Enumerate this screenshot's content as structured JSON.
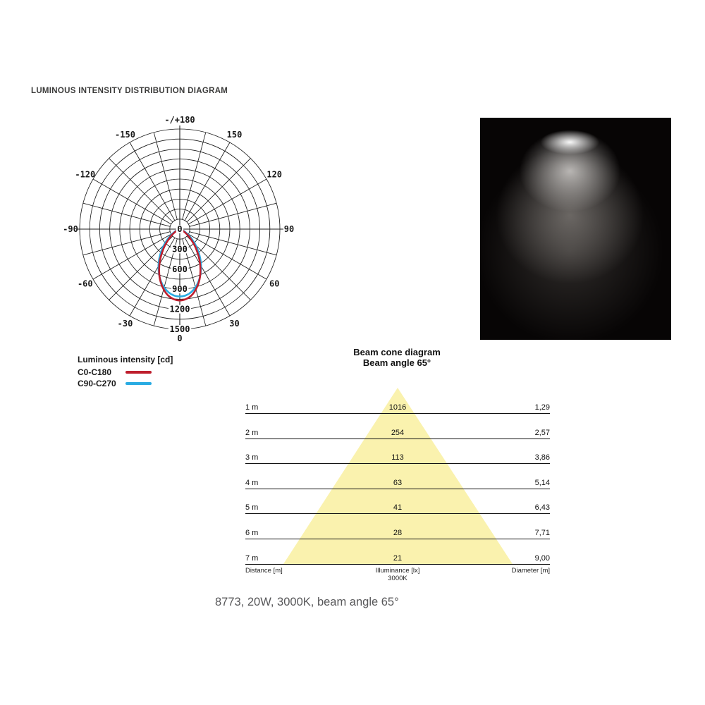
{
  "page": {
    "title": "LUMINOUS INTENSITY DISTRIBUTION DIAGRAM",
    "caption": "8773, 20W, 3000K, beam angle 65°"
  },
  "colors": {
    "red": "#be1e2d",
    "blue": "#29abe2",
    "cone_yellow": "#faf2ae",
    "grid": "#1a1a1a",
    "caption_gray": "#58585a"
  },
  "polar_chart": {
    "legend": {
      "title": "Luminous intensity [cd]",
      "items": [
        {
          "label": "C0-C180",
          "color": "#be1e2d"
        },
        {
          "label": "C90-C270",
          "color": "#29abe2"
        }
      ]
    },
    "angle_labels": [
      {
        "angle": 180,
        "label": "-/+180"
      },
      {
        "angle": -150,
        "label": "-150"
      },
      {
        "angle": 150,
        "label": "150"
      },
      {
        "angle": -120,
        "label": "-120"
      },
      {
        "angle": 120,
        "label": "120"
      },
      {
        "angle": -90,
        "label": "-90"
      },
      {
        "angle": 90,
        "label": "90"
      },
      {
        "angle": -60,
        "label": "-60"
      },
      {
        "angle": 60,
        "label": "60"
      },
      {
        "angle": -30,
        "label": "-30"
      },
      {
        "angle": 30,
        "label": "30"
      },
      {
        "angle": 0,
        "label": "0"
      }
    ],
    "radial_labels": [
      {
        "value": 0,
        "label": "0"
      },
      {
        "value": 300,
        "label": "300"
      },
      {
        "value": 600,
        "label": "600"
      },
      {
        "value": 900,
        "label": "900"
      },
      {
        "value": 1200,
        "label": "1200"
      },
      {
        "value": 1500,
        "label": "1500"
      }
    ],
    "max_value": 1500,
    "ring_step": 150,
    "spoke_step_deg": 15
  },
  "beam_cone": {
    "title_line1": "Beam cone diagram",
    "title_line2": "Beam angle 65°",
    "rows": [
      {
        "distance": "1 m",
        "illuminance": "1016",
        "diameter": "1,29"
      },
      {
        "distance": "2 m",
        "illuminance": "254",
        "diameter": "2,57"
      },
      {
        "distance": "3 m",
        "illuminance": "113",
        "diameter": "3,86"
      },
      {
        "distance": "4 m",
        "illuminance": "63",
        "diameter": "5,14"
      },
      {
        "distance": "5 m",
        "illuminance": "41",
        "diameter": "6,43"
      },
      {
        "distance": "6 m",
        "illuminance": "28",
        "diameter": "7,71"
      },
      {
        "distance": "7 m",
        "illuminance": "21",
        "diameter": "9,00"
      }
    ],
    "footer": {
      "left": "Distance [m]",
      "center_line1": "Illuminance [lx]",
      "center_line2": "3000K",
      "right": "Diameter [m]"
    }
  },
  "chart_data": [
    {
      "type": "line",
      "variant": "polar",
      "title": "Luminous intensity [cd]",
      "angle_unit": "degrees_from_nadir",
      "radial_axis_range": [
        0,
        1500
      ],
      "radial_ticks": [
        300,
        600,
        900,
        1200,
        1500
      ],
      "angle_ticks": [
        -180,
        -150,
        -120,
        -90,
        -60,
        -30,
        0,
        30,
        60,
        90,
        120,
        150,
        180
      ],
      "grid": true,
      "legend_position": "below-left",
      "series": [
        {
          "name": "C0-C180",
          "color": "#be1e2d",
          "points": [
            [
              -90,
              0
            ],
            [
              -80,
              1
            ],
            [
              -70,
              16
            ],
            [
              -60,
              72
            ],
            [
              -50,
              191
            ],
            [
              -40,
              378
            ],
            [
              -30,
              611
            ],
            [
              -20,
              841
            ],
            [
              -10,
              1009
            ],
            [
              0,
              1070
            ],
            [
              10,
              1009
            ],
            [
              20,
              841
            ],
            [
              30,
              611
            ],
            [
              40,
              378
            ],
            [
              50,
              191
            ],
            [
              60,
              72
            ],
            [
              70,
              16
            ],
            [
              80,
              1
            ],
            [
              90,
              0
            ]
          ]
        },
        {
          "name": "C90-C270",
          "color": "#29abe2",
          "points": [
            [
              -90,
              0
            ],
            [
              -80,
              4
            ],
            [
              -70,
              33
            ],
            [
              -60,
              110
            ],
            [
              -50,
              246
            ],
            [
              -40,
              431
            ],
            [
              -30,
              638
            ],
            [
              -20,
              829
            ],
            [
              -10,
              962
            ],
            [
              0,
              1010
            ],
            [
              10,
              962
            ],
            [
              20,
              829
            ],
            [
              30,
              638
            ],
            [
              40,
              431
            ],
            [
              50,
              246
            ],
            [
              60,
              110
            ],
            [
              70,
              33
            ],
            [
              80,
              4
            ],
            [
              90,
              0
            ]
          ]
        }
      ]
    },
    {
      "type": "table",
      "title": "Beam cone diagram",
      "subtitle": "Beam angle 65°",
      "beam_angle_deg": 65,
      "columns": [
        "Distance [m]",
        "Illuminance [lx] 3000K",
        "Diameter [m]"
      ],
      "rows": [
        [
          1,
          1016,
          1.29
        ],
        [
          2,
          254,
          2.57
        ],
        [
          3,
          113,
          3.86
        ],
        [
          4,
          63,
          5.14
        ],
        [
          5,
          41,
          6.43
        ],
        [
          6,
          28,
          7.71
        ],
        [
          7,
          21,
          9.0
        ]
      ]
    }
  ]
}
